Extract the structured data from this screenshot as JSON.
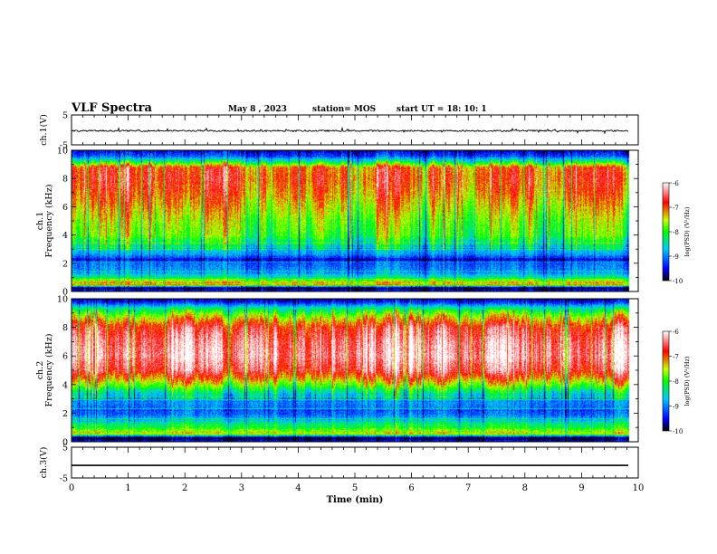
{
  "header": {
    "title": "VLF Spectra",
    "date": "May 8  , 2023",
    "station": "station= MOS",
    "start": "start  UT =   18: 10: 1"
  },
  "chart_data": [
    {
      "type": "line",
      "panel": "ch1-waveform",
      "ylabel": "ch.1(V)",
      "ylim": [
        -5,
        5
      ],
      "yticks": [
        "5",
        "-5"
      ],
      "xlim": [
        0,
        10
      ],
      "level_V": -0.3
    },
    {
      "type": "heatmap",
      "panel": "ch1-spectrogram",
      "ylabel": "ch.1\nFrequency (kHz)",
      "ylabel_lines": [
        "ch.1",
        "Frequency (kHz)"
      ],
      "ylim": [
        0,
        10
      ],
      "yticks": [
        "0",
        "2",
        "4",
        "6",
        "8",
        "10"
      ],
      "xlim": [
        0,
        10
      ],
      "data_end_min": 9.83,
      "colorbar": {
        "label": "log(PSD) (V²/Hz)",
        "range": [
          -10,
          -6
        ],
        "ticks": [
          "-6",
          "-7",
          "-8",
          "-9",
          "-10"
        ]
      },
      "profile_log_psd": [
        {
          "f": 0.0,
          "v": -9.3
        },
        {
          "f": 0.3,
          "v": -10.0
        },
        {
          "f": 0.5,
          "v": -7.2
        },
        {
          "f": 0.8,
          "v": -7.8
        },
        {
          "f": 1.2,
          "v": -8.8
        },
        {
          "f": 1.6,
          "v": -9.0
        },
        {
          "f": 2.0,
          "v": -9.1
        },
        {
          "f": 2.3,
          "v": -9.6
        },
        {
          "f": 2.6,
          "v": -9.0
        },
        {
          "f": 3.0,
          "v": -8.7
        },
        {
          "f": 3.5,
          "v": -8.3
        },
        {
          "f": 4.0,
          "v": -7.9
        },
        {
          "f": 5.0,
          "v": -7.7
        },
        {
          "f": 6.0,
          "v": -7.4
        },
        {
          "f": 7.0,
          "v": -7.1
        },
        {
          "f": 8.0,
          "v": -6.9
        },
        {
          "f": 8.8,
          "v": -7.0
        },
        {
          "f": 9.2,
          "v": -8.2
        },
        {
          "f": 9.6,
          "v": -9.2
        },
        {
          "f": 10.0,
          "v": -9.6
        }
      ]
    },
    {
      "type": "heatmap",
      "panel": "ch2-spectrogram",
      "ylabel": "ch.2\nFrequency (kHz)",
      "ylabel_lines": [
        "ch.2",
        "Frequency (kHz)"
      ],
      "ylim": [
        0,
        10
      ],
      "yticks": [
        "0",
        "2",
        "4",
        "6",
        "8",
        "10"
      ],
      "xlim": [
        0,
        10
      ],
      "data_end_min": 9.83,
      "colorbar": {
        "label": "log(PSD) (V²/Hz)",
        "range": [
          -10,
          -6
        ],
        "ticks": [
          "-6",
          "-7",
          "-8",
          "-9",
          "-10"
        ]
      },
      "profile_log_psd": [
        {
          "f": 0.0,
          "v": -9.3
        },
        {
          "f": 0.3,
          "v": -10.0
        },
        {
          "f": 0.6,
          "v": -7.3
        },
        {
          "f": 1.0,
          "v": -8.0
        },
        {
          "f": 1.5,
          "v": -8.6
        },
        {
          "f": 2.0,
          "v": -9.1
        },
        {
          "f": 2.5,
          "v": -9.0
        },
        {
          "f": 3.0,
          "v": -8.8
        },
        {
          "f": 3.5,
          "v": -8.3
        },
        {
          "f": 4.0,
          "v": -7.6
        },
        {
          "f": 4.5,
          "v": -7.0
        },
        {
          "f": 5.0,
          "v": -6.5
        },
        {
          "f": 6.0,
          "v": -6.2
        },
        {
          "f": 7.0,
          "v": -6.3
        },
        {
          "f": 8.0,
          "v": -6.6
        },
        {
          "f": 8.6,
          "v": -7.2
        },
        {
          "f": 9.0,
          "v": -7.7
        },
        {
          "f": 9.4,
          "v": -8.4
        },
        {
          "f": 9.8,
          "v": -9.4
        },
        {
          "f": 10.0,
          "v": -9.6
        }
      ]
    },
    {
      "type": "line",
      "panel": "ch3-waveform",
      "ylabel": "ch.3(V)",
      "ylim": [
        -5,
        5
      ],
      "yticks": [
        "5",
        "-5"
      ],
      "xlim": [
        0,
        10
      ],
      "level_V": -0.9
    }
  ],
  "xaxis": {
    "label": "Time  (min)",
    "ticks": [
      "0",
      "1",
      "2",
      "3",
      "4",
      "5",
      "6",
      "7",
      "8",
      "9",
      "10"
    ]
  },
  "colorscale": [
    "#000000",
    "#0000ff",
    "#00c0ff",
    "#00ff00",
    "#c8ff00",
    "#ff0000",
    "#ffffff"
  ]
}
